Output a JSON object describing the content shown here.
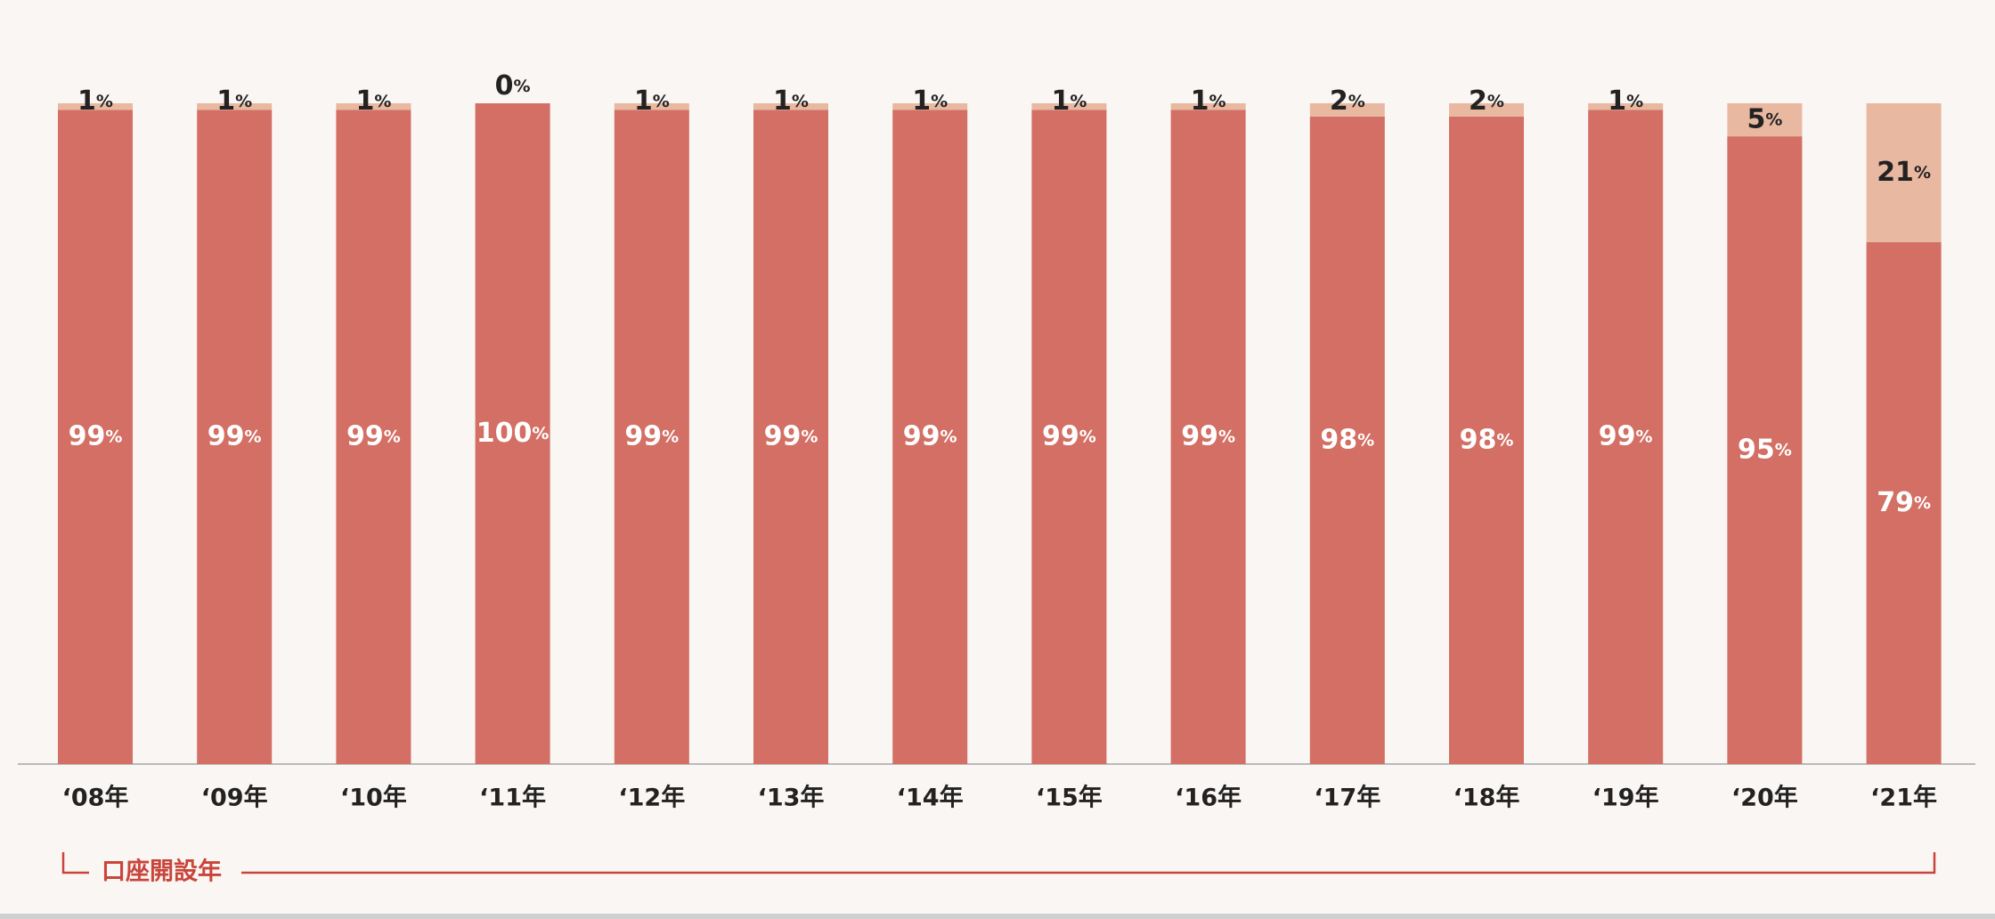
{
  "chart_data": {
    "type": "stacked_bar",
    "categories": [
      "‘08年",
      "‘09年",
      "‘10年",
      "‘11年",
      "‘12年",
      "‘13年",
      "‘14年",
      "‘15年",
      "‘16年",
      "‘17年",
      "‘18年",
      "‘19年",
      "‘20年",
      "‘21年"
    ],
    "series": [
      {
        "color": "#d36f64",
        "values": [
          99,
          99,
          99,
          100,
          99,
          99,
          99,
          99,
          99,
          98,
          98,
          99,
          95,
          79
        ],
        "value_labels": [
          "99%",
          "99%",
          "99%",
          "100%",
          "99%",
          "99%",
          "99%",
          "99%",
          "99%",
          "98%",
          "98%",
          "99%",
          "95%",
          "79%"
        ]
      },
      {
        "color": "#e8b8a0",
        "values": [
          1,
          1,
          1,
          0,
          1,
          1,
          1,
          1,
          1,
          2,
          2,
          1,
          5,
          21
        ],
        "value_labels": [
          "1%",
          "1%",
          "1%",
          "0%",
          "1%",
          "1%",
          "1%",
          "1%",
          "1%",
          "2%",
          "2%",
          "1%",
          "5%",
          "21%"
        ]
      }
    ],
    "ylim": [
      0,
      100
    ],
    "x_label": "口座開設年"
  }
}
